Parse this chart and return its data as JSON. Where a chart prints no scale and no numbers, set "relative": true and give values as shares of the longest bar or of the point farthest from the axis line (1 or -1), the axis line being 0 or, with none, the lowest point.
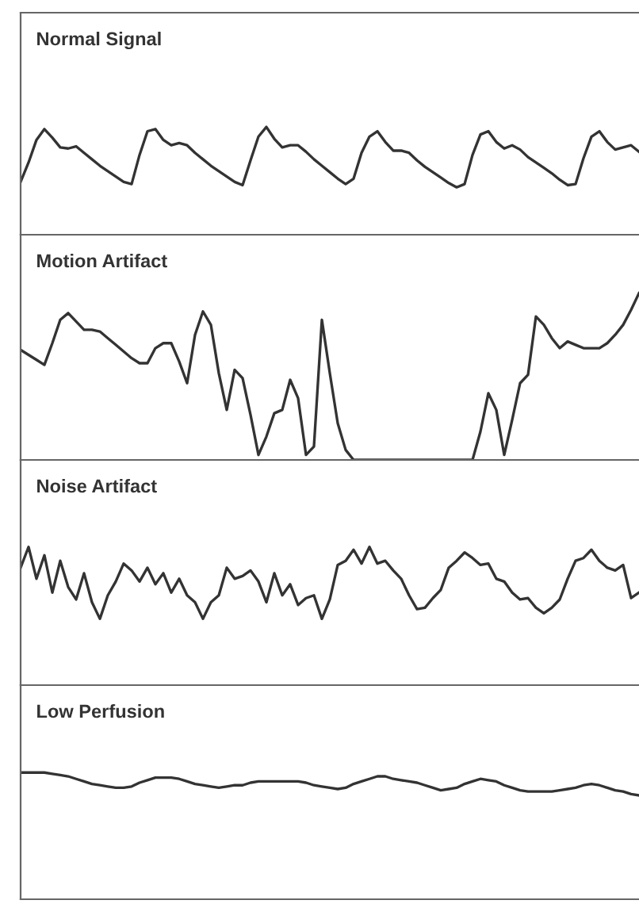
{
  "chart_data": [
    {
      "type": "line",
      "title": "Normal Signal",
      "relative": true,
      "categories": [
        null,
        null,
        null,
        null,
        null,
        null,
        null,
        null,
        null,
        null,
        null,
        null,
        null,
        null,
        null,
        null,
        null,
        null,
        null,
        null,
        null,
        null,
        null,
        null,
        null,
        null,
        null,
        null,
        null,
        null,
        null,
        null,
        null,
        null,
        null,
        null,
        null,
        null,
        null,
        null,
        null,
        null,
        null,
        null,
        null,
        null,
        null,
        null,
        null,
        null,
        null,
        null,
        null,
        null,
        null,
        null,
        null,
        null,
        null,
        null,
        null,
        null,
        null,
        null,
        null,
        null,
        null,
        null,
        null,
        null,
        null,
        null,
        null,
        null,
        null,
        null,
        null,
        null,
        null
      ],
      "series": [
        {
          "color": "#333333",
          "values": [
            0.49,
            0.67,
            0.88,
            0.98,
            0.9,
            0.81,
            0.8,
            0.82,
            0.76,
            0.7,
            0.64,
            0.59,
            0.54,
            0.49,
            0.47,
            0.74,
            0.96,
            0.98,
            0.88,
            0.83,
            0.85,
            0.83,
            0.76,
            0.7,
            0.64,
            0.59,
            0.54,
            0.49,
            0.46,
            0.69,
            0.91,
            1.0,
            0.89,
            0.81,
            0.83,
            0.83,
            0.77,
            0.7,
            0.64,
            0.58,
            0.52,
            0.47,
            0.52,
            0.76,
            0.91,
            0.96,
            0.86,
            0.78,
            0.78,
            0.76,
            0.69,
            0.63,
            0.58,
            0.53,
            0.48,
            0.44,
            0.47,
            0.74,
            0.93,
            0.96,
            0.86,
            0.8,
            0.83,
            0.79,
            0.72,
            0.67,
            0.62,
            0.57,
            0.51,
            0.46,
            0.47,
            0.71,
            0.91,
            0.96,
            0.86,
            0.79,
            0.81,
            0.83,
            0.77
          ]
        }
      ]
    },
    {
      "type": "line",
      "title": "Motion Artifact",
      "relative": true,
      "categories": [
        null,
        null,
        null,
        null,
        null,
        null,
        null,
        null,
        null,
        null,
        null,
        null,
        null,
        null,
        null,
        null,
        null,
        null,
        null,
        null,
        null,
        null,
        null,
        null,
        null,
        null,
        null,
        null,
        null,
        null,
        null,
        null,
        null,
        null,
        null,
        null,
        null,
        null,
        null,
        null,
        null,
        null,
        null,
        null,
        null,
        null,
        null,
        null,
        null,
        null,
        null,
        null,
        null,
        null,
        null,
        null,
        null,
        null,
        null,
        null,
        null,
        null,
        null,
        null,
        null,
        null,
        null,
        null,
        null,
        null,
        null,
        null,
        null,
        null,
        null,
        null,
        null,
        null,
        null
      ],
      "series": [
        {
          "color": "#333333",
          "values": [
            0.66,
            0.63,
            0.6,
            0.57,
            0.7,
            0.84,
            0.88,
            0.83,
            0.78,
            0.78,
            0.77,
            0.73,
            0.69,
            0.65,
            0.61,
            0.58,
            0.58,
            0.67,
            0.7,
            0.7,
            0.59,
            0.46,
            0.75,
            0.89,
            0.81,
            0.52,
            0.3,
            0.54,
            0.49,
            0.27,
            0.03,
            0.14,
            0.28,
            0.3,
            0.48,
            0.37,
            0.03,
            0.08,
            0.84,
            0.52,
            0.22,
            0.06,
            0,
            0,
            0,
            0,
            0,
            0,
            0,
            0,
            0,
            0,
            0,
            0,
            0,
            0,
            0,
            0,
            0.17,
            0.4,
            0.3,
            0.03,
            0.24,
            0.46,
            0.51,
            0.86,
            0.81,
            0.73,
            0.67,
            0.71,
            0.69,
            0.67,
            0.67,
            0.67,
            0.7,
            0.75,
            0.81,
            0.9,
            1.0
          ]
        }
      ]
    },
    {
      "type": "line",
      "title": "Noise Artifact",
      "relative": true,
      "categories": [
        null,
        null,
        null,
        null,
        null,
        null,
        null,
        null,
        null,
        null,
        null,
        null,
        null,
        null,
        null,
        null,
        null,
        null,
        null,
        null,
        null,
        null,
        null,
        null,
        null,
        null,
        null,
        null,
        null,
        null,
        null,
        null,
        null,
        null,
        null,
        null,
        null,
        null,
        null,
        null,
        null,
        null,
        null,
        null,
        null,
        null,
        null,
        null,
        null,
        null,
        null,
        null,
        null,
        null,
        null,
        null,
        null,
        null,
        null,
        null,
        null,
        null,
        null,
        null,
        null,
        null,
        null,
        null,
        null,
        null,
        null,
        null,
        null,
        null,
        null,
        null,
        null,
        null,
        null
      ],
      "series": [
        {
          "color": "#333333",
          "values": [
            0.85,
            1.0,
            0.77,
            0.94,
            0.67,
            0.9,
            0.71,
            0.62,
            0.81,
            0.6,
            0.48,
            0.65,
            0.75,
            0.88,
            0.83,
            0.75,
            0.85,
            0.73,
            0.81,
            0.67,
            0.77,
            0.65,
            0.6,
            0.48,
            0.6,
            0.65,
            0.85,
            0.77,
            0.79,
            0.83,
            0.75,
            0.6,
            0.81,
            0.65,
            0.73,
            0.58,
            0.63,
            0.65,
            0.48,
            0.62,
            0.87,
            0.9,
            0.98,
            0.88,
            1.0,
            0.88,
            0.9,
            0.83,
            0.77,
            0.65,
            0.55,
            0.56,
            0.63,
            0.69,
            0.85,
            0.9,
            0.96,
            0.92,
            0.87,
            0.88,
            0.77,
            0.75,
            0.67,
            0.62,
            0.63,
            0.56,
            0.52,
            0.56,
            0.62,
            0.77,
            0.9,
            0.92,
            0.98,
            0.9,
            0.85,
            0.83,
            0.87,
            0.63,
            0.67
          ]
        }
      ]
    },
    {
      "type": "line",
      "title": "Low Perfusion",
      "relative": true,
      "categories": [
        null,
        null,
        null,
        null,
        null,
        null,
        null,
        null,
        null,
        null,
        null,
        null,
        null,
        null,
        null,
        null,
        null,
        null,
        null,
        null,
        null,
        null,
        null,
        null,
        null,
        null,
        null,
        null,
        null,
        null,
        null,
        null,
        null,
        null,
        null,
        null,
        null,
        null,
        null,
        null,
        null,
        null,
        null,
        null,
        null,
        null,
        null,
        null,
        null,
        null,
        null,
        null,
        null,
        null,
        null,
        null,
        null,
        null,
        null,
        null,
        null,
        null,
        null,
        null,
        null,
        null,
        null,
        null,
        null,
        null,
        null,
        null,
        null,
        null,
        null,
        null,
        null,
        null,
        null
      ],
      "series": [
        {
          "color": "#333333",
          "values": [
            1.0,
            1.0,
            1.0,
            1.0,
            0.99,
            0.98,
            0.97,
            0.95,
            0.93,
            0.91,
            0.9,
            0.89,
            0.88,
            0.88,
            0.89,
            0.92,
            0.94,
            0.96,
            0.96,
            0.96,
            0.95,
            0.93,
            0.91,
            0.9,
            0.89,
            0.88,
            0.89,
            0.9,
            0.9,
            0.92,
            0.93,
            0.93,
            0.93,
            0.93,
            0.93,
            0.93,
            0.92,
            0.9,
            0.89,
            0.88,
            0.87,
            0.88,
            0.91,
            0.93,
            0.95,
            0.97,
            0.97,
            0.95,
            0.94,
            0.93,
            0.92,
            0.9,
            0.88,
            0.86,
            0.87,
            0.88,
            0.91,
            0.93,
            0.95,
            0.94,
            0.93,
            0.9,
            0.88,
            0.86,
            0.85,
            0.85,
            0.85,
            0.85,
            0.86,
            0.87,
            0.88,
            0.9,
            0.91,
            0.9,
            0.88,
            0.86,
            0.85,
            0.83,
            0.82
          ]
        }
      ]
    }
  ]
}
